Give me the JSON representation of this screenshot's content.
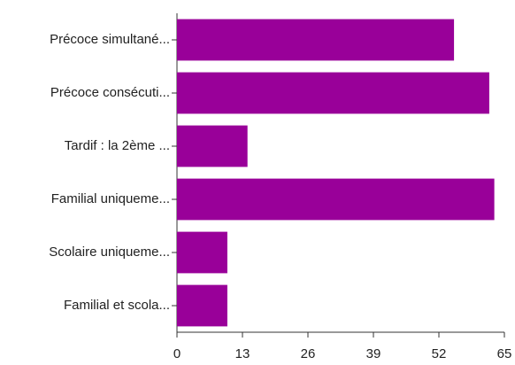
{
  "chart_data": {
    "type": "bar",
    "orientation": "horizontal",
    "categories": [
      "Précoce simultané...",
      "Précoce consécuti...",
      "Tardif : la 2ème ...",
      "Familial uniqueme...",
      "Scolaire uniqueme...",
      "Familial et scola..."
    ],
    "values": [
      55,
      62,
      14,
      63,
      10,
      10
    ],
    "color": "#990099",
    "xlim": [
      0,
      65
    ],
    "xticks": [
      0,
      13,
      26,
      39,
      52,
      65
    ],
    "grid": false
  }
}
